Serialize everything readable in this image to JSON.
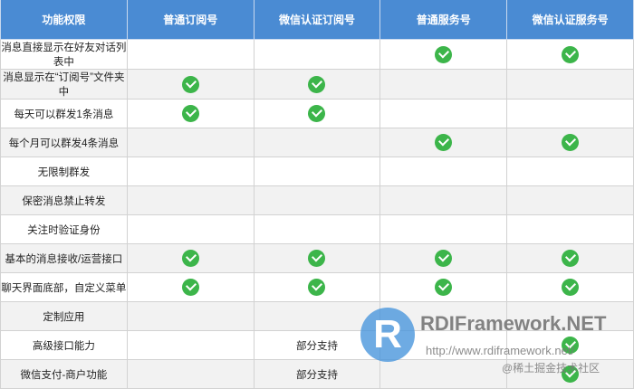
{
  "headers": [
    "功能权限",
    "普通订阅号",
    "微信认证订阅号",
    "普通服务号",
    "微信认证服务号"
  ],
  "rows": [
    {
      "label": "消息直接显示在好友对话列表中",
      "cells": [
        "",
        "",
        "check",
        "check"
      ]
    },
    {
      "label": "消息显示在“订阅号”文件夹中",
      "cells": [
        "check",
        "check",
        "",
        ""
      ]
    },
    {
      "label": "每天可以群发1条消息",
      "cells": [
        "check",
        "check",
        "",
        ""
      ]
    },
    {
      "label": "每个月可以群发4条消息",
      "cells": [
        "",
        "",
        "check",
        "check"
      ]
    },
    {
      "label": "无限制群发",
      "cells": [
        "",
        "",
        "",
        ""
      ]
    },
    {
      "label": "保密消息禁止转发",
      "cells": [
        "",
        "",
        "",
        ""
      ]
    },
    {
      "label": "关注时验证身份",
      "cells": [
        "",
        "",
        "",
        ""
      ]
    },
    {
      "label": "基本的消息接收/运营接口",
      "cells": [
        "check",
        "check",
        "check",
        "check"
      ]
    },
    {
      "label": "聊天界面底部，自定义菜单",
      "cells": [
        "check",
        "check",
        "check",
        "check"
      ]
    },
    {
      "label": "定制应用",
      "cells": [
        "",
        "",
        "",
        ""
      ]
    },
    {
      "label": "高级接口能力",
      "cells": [
        "",
        "部分支持",
        "",
        "check"
      ]
    },
    {
      "label": "微信支付-商户功能",
      "cells": [
        "",
        "部分支持",
        "",
        "check"
      ]
    }
  ],
  "watermark": {
    "logo_letter": "R",
    "title": "RDIFramework.NET",
    "url": "http://www.rdiframework.net/",
    "credit": "@稀土掘金技术社区"
  },
  "colors": {
    "header": "#4a8bd3",
    "check": "#3cb54a",
    "alt_row": "#f2f2f2"
  }
}
